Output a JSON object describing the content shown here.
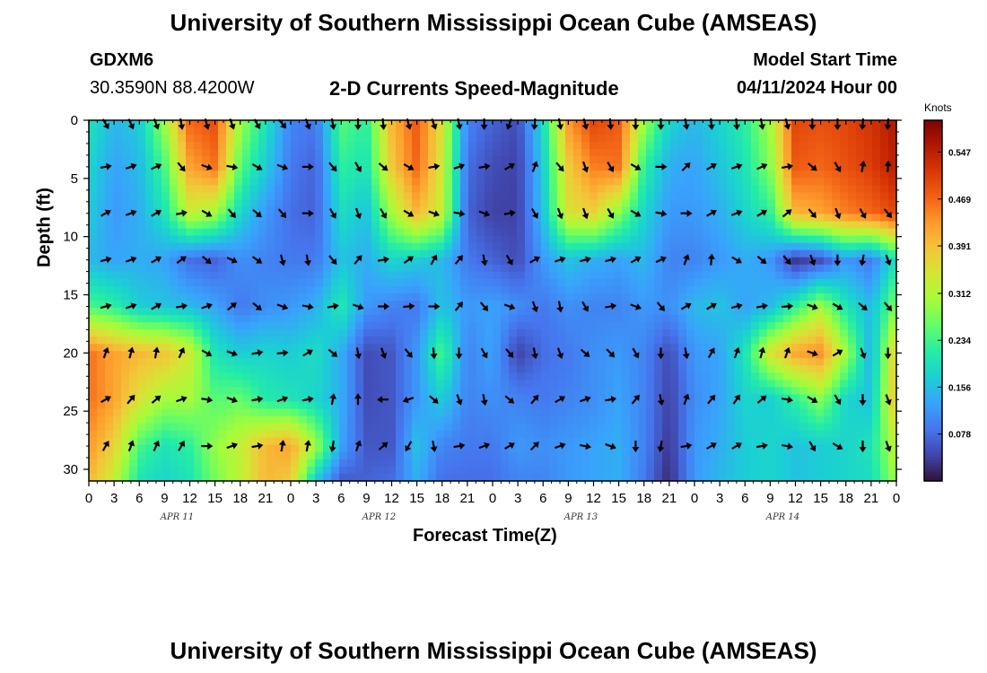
{
  "page": {
    "title_top": "University of Southern Mississippi Ocean Cube (AMSEAS)",
    "title_bottom": "University of Southern Mississippi Ocean Cube (AMSEAS)",
    "station": "GDXM6",
    "coords": "30.3590N  88.4200W",
    "subtitle": "2-D Currents Speed-Magnitude",
    "start_label": "Model Start Time",
    "start_value": "04/11/2024 Hour 00"
  },
  "colorbar": {
    "unit": "Knots",
    "tick_labels": [
      "0.547",
      "0.469",
      "0.391",
      "0.312",
      "0.234",
      "0.156",
      "0.078"
    ],
    "tick_values": [
      0.547,
      0.469,
      0.391,
      0.312,
      0.234,
      0.156,
      0.078
    ],
    "vmin": 0.0,
    "vmax": 0.6,
    "stops": [
      "#30123b",
      "#4145ab",
      "#4675ed",
      "#39a2fc",
      "#1bcfd4",
      "#24eca6",
      "#61fc6c",
      "#a4fc3b",
      "#d1e834",
      "#f3c63a",
      "#fe9b2d",
      "#f36315",
      "#d93806",
      "#b11901",
      "#7a0403"
    ]
  },
  "chart_data": {
    "type": "heatmap",
    "title": "2-D Currents Speed-Magnitude",
    "xlabel": "Forecast Time(Z)",
    "ylabel": "Depth (ft)",
    "x_tick_labels": [
      "0",
      "3",
      "6",
      "9",
      "12",
      "15",
      "18",
      "21",
      "0",
      "3",
      "6",
      "9",
      "12",
      "15",
      "18",
      "21",
      "0",
      "3",
      "6",
      "9",
      "12",
      "15",
      "18",
      "21",
      "0",
      "3",
      "6",
      "9",
      "12",
      "15",
      "18",
      "21",
      "0"
    ],
    "day_labels": [
      "APR 11",
      "APR 12",
      "APR 13",
      "APR 14"
    ],
    "xlim_hours": [
      0,
      96
    ],
    "ylim_ft": [
      0,
      31
    ],
    "y_ticks": [
      0,
      5,
      10,
      15,
      20,
      25,
      30
    ],
    "y_tick_labels": [
      "0",
      "5",
      "10",
      "15",
      "20",
      "25",
      "30"
    ],
    "depths_ft": [
      0,
      4,
      8,
      12,
      16,
      20,
      24,
      28,
      31
    ],
    "times_hr": [
      0,
      3,
      6,
      9,
      12,
      15,
      18,
      21,
      24,
      27,
      30,
      33,
      36,
      39,
      42,
      45,
      48,
      51,
      54,
      57,
      60,
      63,
      66,
      69,
      72,
      75,
      78,
      81,
      84,
      87,
      90,
      93,
      96
    ],
    "speed_knots": [
      [
        0.2,
        0.15,
        0.17,
        0.3,
        0.47,
        0.49,
        0.3,
        0.2,
        0.1,
        0.09,
        0.25,
        0.22,
        0.4,
        0.48,
        0.35,
        0.1,
        0.07,
        0.05,
        0.19,
        0.43,
        0.5,
        0.48,
        0.3,
        0.18,
        0.15,
        0.18,
        0.22,
        0.3,
        0.5,
        0.49,
        0.5,
        0.52,
        0.56
      ],
      [
        0.18,
        0.13,
        0.15,
        0.24,
        0.42,
        0.46,
        0.25,
        0.17,
        0.09,
        0.07,
        0.22,
        0.2,
        0.38,
        0.47,
        0.34,
        0.08,
        0.05,
        0.04,
        0.17,
        0.38,
        0.45,
        0.46,
        0.22,
        0.14,
        0.13,
        0.16,
        0.2,
        0.28,
        0.48,
        0.47,
        0.49,
        0.51,
        0.55
      ],
      [
        0.17,
        0.12,
        0.14,
        0.2,
        0.33,
        0.3,
        0.18,
        0.12,
        0.08,
        0.07,
        0.19,
        0.16,
        0.3,
        0.4,
        0.33,
        0.07,
        0.04,
        0.04,
        0.16,
        0.35,
        0.37,
        0.28,
        0.18,
        0.12,
        0.12,
        0.14,
        0.18,
        0.22,
        0.4,
        0.42,
        0.45,
        0.47,
        0.5
      ],
      [
        0.15,
        0.13,
        0.14,
        0.13,
        0.08,
        0.07,
        0.11,
        0.1,
        0.09,
        0.09,
        0.16,
        0.14,
        0.18,
        0.17,
        0.15,
        0.09,
        0.07,
        0.05,
        0.12,
        0.16,
        0.14,
        0.13,
        0.15,
        0.1,
        0.1,
        0.12,
        0.14,
        0.12,
        0.03,
        0.05,
        0.12,
        0.09,
        0.2
      ],
      [
        0.24,
        0.22,
        0.17,
        0.16,
        0.15,
        0.13,
        0.09,
        0.11,
        0.12,
        0.14,
        0.21,
        0.12,
        0.1,
        0.09,
        0.16,
        0.12,
        0.13,
        0.11,
        0.09,
        0.11,
        0.1,
        0.1,
        0.12,
        0.11,
        0.15,
        0.16,
        0.13,
        0.15,
        0.22,
        0.3,
        0.2,
        0.15,
        0.28
      ],
      [
        0.46,
        0.42,
        0.4,
        0.39,
        0.34,
        0.2,
        0.17,
        0.18,
        0.17,
        0.19,
        0.14,
        0.05,
        0.06,
        0.12,
        0.24,
        0.1,
        0.13,
        0.04,
        0.08,
        0.09,
        0.11,
        0.12,
        0.1,
        0.05,
        0.12,
        0.13,
        0.2,
        0.35,
        0.42,
        0.44,
        0.3,
        0.14,
        0.39
      ],
      [
        0.46,
        0.42,
        0.35,
        0.3,
        0.3,
        0.25,
        0.26,
        0.21,
        0.2,
        0.18,
        0.14,
        0.05,
        0.06,
        0.12,
        0.17,
        0.1,
        0.11,
        0.1,
        0.09,
        0.1,
        0.11,
        0.13,
        0.1,
        0.04,
        0.11,
        0.13,
        0.18,
        0.17,
        0.22,
        0.28,
        0.18,
        0.16,
        0.4
      ],
      [
        0.43,
        0.37,
        0.24,
        0.2,
        0.22,
        0.29,
        0.33,
        0.4,
        0.42,
        0.3,
        0.13,
        0.06,
        0.06,
        0.16,
        0.1,
        0.09,
        0.09,
        0.12,
        0.11,
        0.12,
        0.13,
        0.14,
        0.1,
        0.03,
        0.12,
        0.14,
        0.17,
        0.18,
        0.16,
        0.17,
        0.18,
        0.2,
        0.33
      ],
      [
        0.4,
        0.33,
        0.2,
        0.18,
        0.2,
        0.27,
        0.32,
        0.4,
        0.38,
        0.16,
        0.06,
        0.07,
        0.08,
        0.14,
        0.08,
        0.08,
        0.08,
        0.1,
        0.1,
        0.12,
        0.13,
        0.14,
        0.09,
        0.02,
        0.12,
        0.15,
        0.17,
        0.18,
        0.16,
        0.17,
        0.18,
        0.19,
        0.3
      ]
    ],
    "arrow_depths_ft": [
      0,
      4,
      8,
      12,
      16,
      20,
      24,
      28
    ],
    "arrow_times_hr": [
      2,
      5,
      8,
      11,
      14,
      17,
      20,
      23,
      26,
      29,
      32,
      35,
      38,
      41,
      44,
      47,
      50,
      53,
      56,
      59,
      62,
      65,
      68,
      71,
      74,
      77,
      80,
      83,
      86,
      89,
      92,
      95
    ],
    "arrow_dir_deg": [
      [
        150,
        155,
        160,
        170,
        165,
        160,
        150,
        140,
        160,
        170,
        180,
        175,
        165,
        160,
        170,
        180,
        200,
        185,
        170,
        165,
        175,
        180,
        180,
        170,
        175,
        175,
        170,
        165,
        180,
        180,
        185,
        185
      ],
      [
        80,
        70,
        65,
        140,
        110,
        100,
        120,
        110,
        90,
        140,
        150,
        130,
        120,
        80,
        70,
        80,
        60,
        20,
        140,
        160,
        150,
        120,
        90,
        45,
        60,
        70,
        65,
        80,
        130,
        150,
        10,
        5
      ],
      [
        60,
        70,
        60,
        80,
        120,
        140,
        130,
        140,
        90,
        150,
        160,
        150,
        120,
        110,
        100,
        110,
        80,
        150,
        160,
        160,
        150,
        120,
        100,
        90,
        60,
        70,
        60,
        50,
        140,
        160,
        150,
        140
      ],
      [
        75,
        70,
        60,
        55,
        130,
        115,
        125,
        165,
        170,
        140,
        40,
        80,
        55,
        30,
        40,
        170,
        150,
        60,
        70,
        75,
        75,
        60,
        65,
        20,
        5,
        120,
        130,
        140,
        160,
        180,
        190,
        160
      ],
      [
        75,
        70,
        60,
        80,
        70,
        50,
        130,
        110,
        100,
        80,
        110,
        90,
        85,
        90,
        40,
        140,
        110,
        160,
        170,
        150,
        80,
        110,
        140,
        60,
        60,
        75,
        80,
        85,
        110,
        120,
        130,
        140
      ],
      [
        20,
        15,
        10,
        25,
        120,
        110,
        80,
        85,
        60,
        130,
        170,
        160,
        140,
        175,
        180,
        150,
        140,
        170,
        160,
        130,
        135,
        150,
        180,
        170,
        30,
        20,
        15,
        20,
        110,
        60,
        160,
        180
      ],
      [
        60,
        40,
        50,
        70,
        100,
        110,
        80,
        70,
        80,
        10,
        0,
        270,
        250,
        130,
        160,
        170,
        130,
        40,
        60,
        70,
        80,
        40,
        170,
        20,
        40,
        35,
        50,
        100,
        120,
        150,
        180,
        160
      ],
      [
        30,
        20,
        25,
        30,
        90,
        70,
        80,
        10,
        10,
        190,
        20,
        50,
        210,
        170,
        80,
        70,
        60,
        45,
        70,
        100,
        110,
        180,
        190,
        80,
        60,
        60,
        80,
        100,
        150,
        120,
        180,
        160
      ]
    ]
  }
}
